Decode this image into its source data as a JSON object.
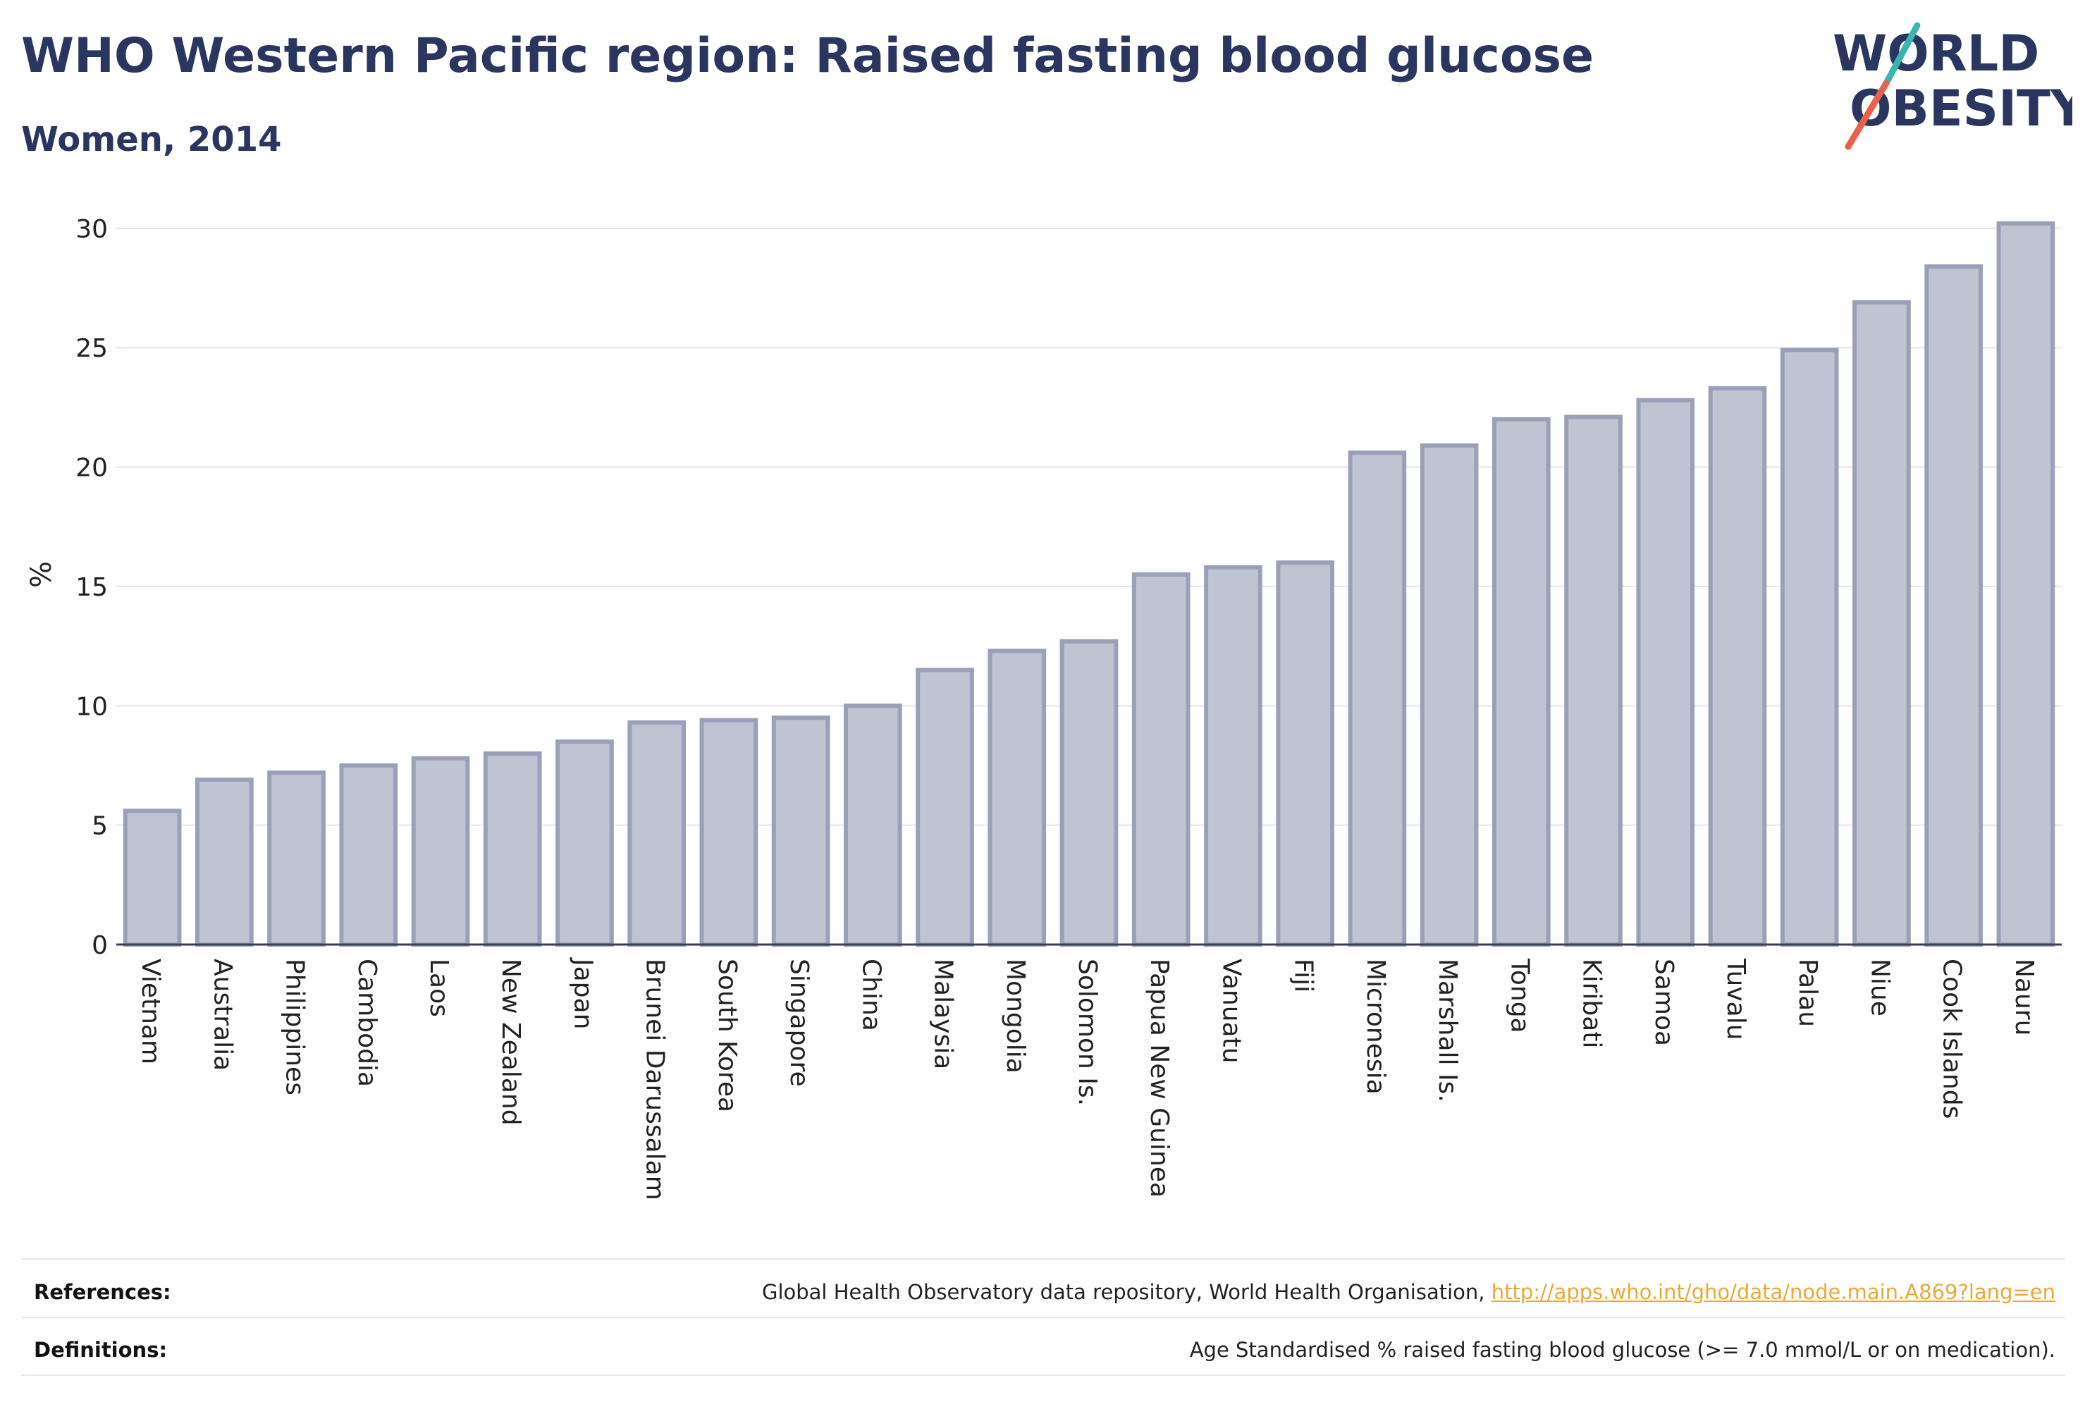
{
  "header": {
    "title": "WHO Western Pacific region: Raised fasting blood glucose",
    "subtitle": "Women, 2014"
  },
  "logo": {
    "line1": "WORLD",
    "line2": "OBESITY",
    "text_color": "#2a3560",
    "slash_color_top": "#3ab5b0",
    "slash_color_bottom": "#e8604c"
  },
  "chart_data": {
    "type": "bar",
    "title": "WHO Western Pacific region: Raised fasting blood glucose",
    "subtitle": "Women, 2014",
    "xlabel": "",
    "ylabel": "%",
    "ylim": [
      0,
      31
    ],
    "yticks": [
      0,
      5,
      10,
      15,
      20,
      25,
      30
    ],
    "grid": true,
    "categories": [
      "Vietnam",
      "Australia",
      "Philippines",
      "Cambodia",
      "Laos",
      "New Zealand",
      "Japan",
      "Brunei Darussalam",
      "South Korea",
      "Singapore",
      "China",
      "Malaysia",
      "Mongolia",
      "Solomon Is.",
      "Papua New Guinea",
      "Vanuatu",
      "Fiji",
      "Micronesia",
      "Marshall Is.",
      "Tonga",
      "Kiribati",
      "Samoa",
      "Tuvalu",
      "Palau",
      "Niue",
      "Cook Islands",
      "Nauru"
    ],
    "values": [
      5.6,
      6.9,
      7.2,
      7.5,
      7.8,
      8.0,
      8.5,
      9.3,
      9.4,
      9.5,
      10.0,
      11.5,
      12.3,
      12.7,
      15.5,
      15.8,
      16.0,
      20.6,
      20.9,
      22.0,
      22.1,
      22.8,
      23.3,
      24.9,
      26.9,
      28.4,
      30.2
    ],
    "bar_fill": "#bfc3d2",
    "bar_stroke": "#9aa0b8"
  },
  "footer": {
    "references_label": "References:",
    "references_text": "Global Health Observatory data repository, World Health Organisation,",
    "references_link": "http://apps.who.int/gho/data/node.main.A869?lang=en",
    "definitions_label": "Definitions:",
    "definitions_text": "Age Standardised % raised fasting blood glucose (>= 7.0 mmol/L or on medication)."
  }
}
